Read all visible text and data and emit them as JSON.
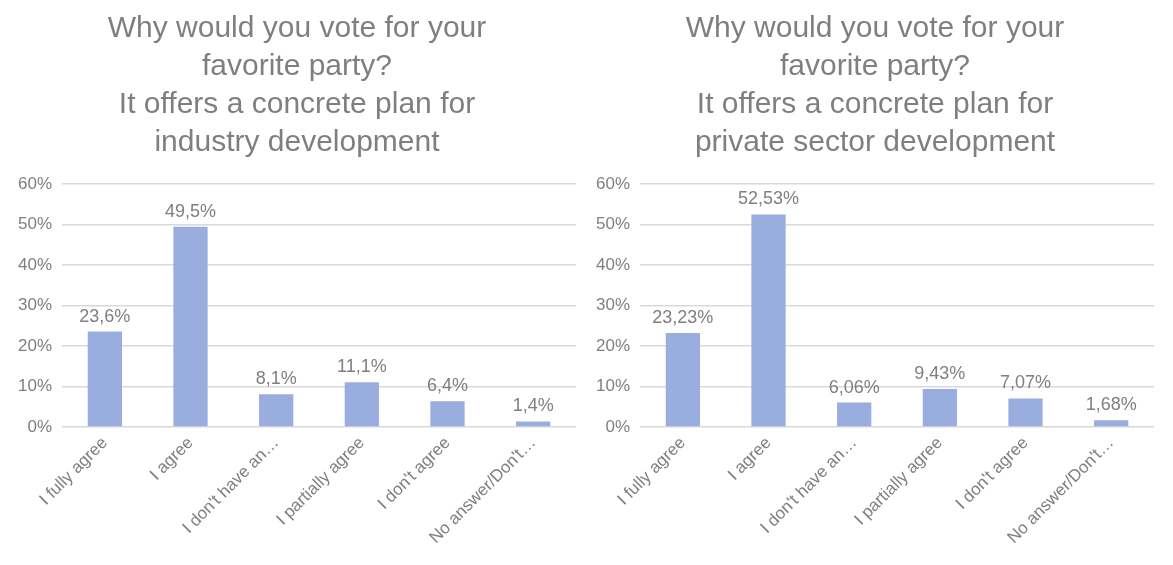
{
  "chart_data": [
    {
      "type": "bar",
      "title": "Why would you vote for your favorite party?\nIt offers a concrete plan for industry development",
      "categories": [
        "I fully agree",
        "I agree",
        "I don't have an…",
        "I partially agree",
        "I don't agree",
        "No answer/Don't…"
      ],
      "values": [
        23.6,
        49.5,
        8.1,
        11.1,
        6.4,
        1.4
      ],
      "value_labels": [
        "23,6%",
        "49,5%",
        "8,1%",
        "11,1%",
        "6,4%",
        "1,4%"
      ],
      "color": "#9aaddf",
      "ylim": [
        0,
        60
      ],
      "yticks": [
        {
          "value": 0,
          "label": "0%"
        },
        {
          "value": 10,
          "label": "10%"
        },
        {
          "value": 20,
          "label": "20%"
        },
        {
          "value": 30,
          "label": "30%"
        },
        {
          "value": 40,
          "label": "40%"
        },
        {
          "value": 50,
          "label": "50%"
        },
        {
          "value": 60,
          "label": "60%"
        }
      ],
      "grid": "y",
      "legend": false
    },
    {
      "type": "bar",
      "title": "Why would you vote for your favorite party?\nIt offers a concrete plan for private sector development",
      "categories": [
        "I fully agree",
        "I agree",
        "I don't have an…",
        "I partially agree",
        "I don't agree",
        "No answer/Don't…"
      ],
      "values": [
        23.23,
        52.53,
        6.06,
        9.43,
        7.07,
        1.68
      ],
      "value_labels": [
        "23,23%",
        "52,53%",
        "6,06%",
        "9,43%",
        "7,07%",
        "1,68%"
      ],
      "color": "#9aaddf",
      "ylim": [
        0,
        60
      ],
      "yticks": [
        {
          "value": 0,
          "label": "0%"
        },
        {
          "value": 10,
          "label": "10%"
        },
        {
          "value": 20,
          "label": "20%"
        },
        {
          "value": 30,
          "label": "30%"
        },
        {
          "value": 40,
          "label": "40%"
        },
        {
          "value": 50,
          "label": "50%"
        },
        {
          "value": 60,
          "label": "60%"
        }
      ],
      "grid": "y",
      "legend": false
    }
  ]
}
